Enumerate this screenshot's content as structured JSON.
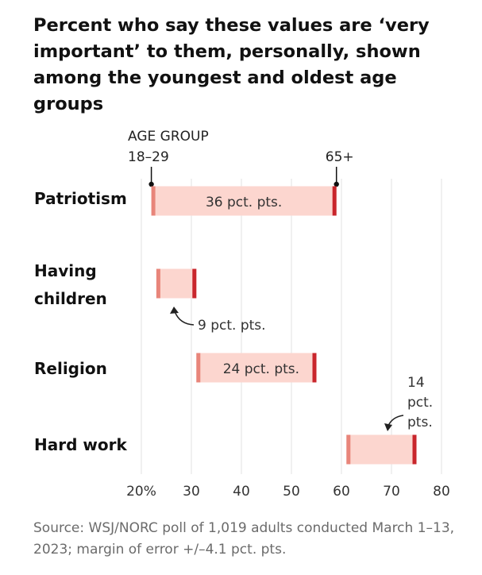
{
  "title": "Percent who say these values are ‘very important’ to them, personally, shown among the youngest and oldest age groups",
  "source": "Source: WSJ/NORC poll of 1,019 adults conducted March 1–13, 2023; margin of error +/–4.1 pct. pts.",
  "colors": {
    "bar_fill": "#fcd6cf",
    "young_marker": "#e8857a",
    "old_marker": "#c9262c",
    "grid": "#e2e2e2",
    "text": "#111111",
    "muted": "#6b6b6b"
  },
  "chart_data": {
    "type": "dumbbell",
    "header": "AGE GROUP",
    "series": [
      {
        "name": "18–29"
      },
      {
        "name": "65+"
      }
    ],
    "categories": [
      "Patriotism",
      "Having children",
      "Religion",
      "Hard work"
    ],
    "category_lines": [
      [
        "Patriotism"
      ],
      [
        "Having",
        "children"
      ],
      [
        "Religion"
      ],
      [
        "Hard work"
      ]
    ],
    "young": [
      22,
      23,
      31,
      61
    ],
    "old": [
      59,
      31,
      55,
      75
    ],
    "diff_labels": [
      [
        "36 pct. pts."
      ],
      [
        "9 pct. pts."
      ],
      [
        "24 pct. pts."
      ],
      [
        "14",
        "pct.",
        "pts."
      ]
    ],
    "x_ticks": [
      20,
      30,
      40,
      50,
      60,
      70,
      80
    ],
    "x_tick_labels": [
      "20%",
      "30",
      "40",
      "50",
      "60",
      "70",
      "80"
    ],
    "xlim": [
      20,
      80
    ],
    "grid": true
  }
}
